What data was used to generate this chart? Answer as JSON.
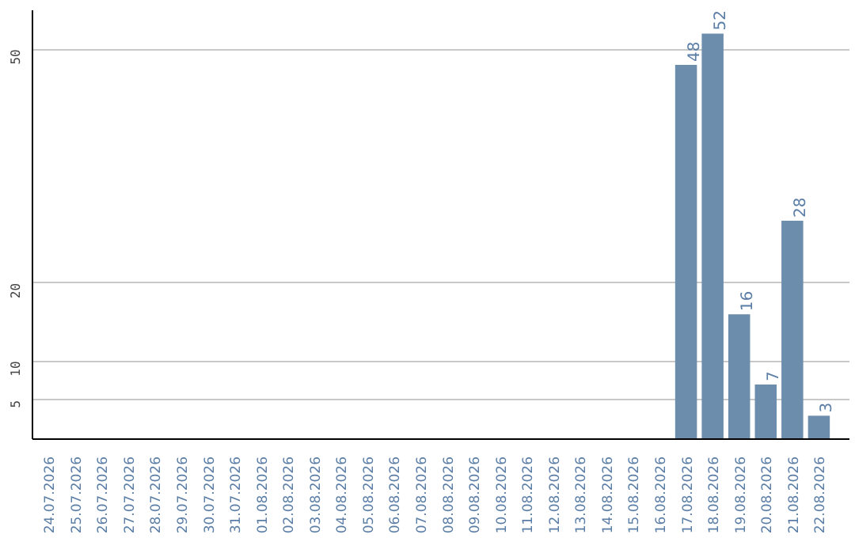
{
  "chart_data": {
    "type": "bar",
    "categories": [
      "24.07.2026",
      "25.07.2026",
      "26.07.2026",
      "27.07.2026",
      "28.07.2026",
      "29.07.2026",
      "30.07.2026",
      "31.07.2026",
      "01.08.2026",
      "02.08.2026",
      "03.08.2026",
      "04.08.2026",
      "05.08.2026",
      "06.08.2026",
      "07.08.2026",
      "08.08.2026",
      "09.08.2026",
      "10.08.2026",
      "11.08.2026",
      "12.08.2026",
      "13.08.2026",
      "14.08.2026",
      "15.08.2026",
      "16.08.2026",
      "17.08.2026",
      "18.08.2026",
      "19.08.2026",
      "20.08.2026",
      "21.08.2026",
      "22.08.2026"
    ],
    "values": [
      0,
      0,
      0,
      0,
      0,
      0,
      0,
      0,
      0,
      0,
      0,
      0,
      0,
      0,
      0,
      0,
      0,
      0,
      0,
      0,
      0,
      0,
      0,
      0,
      48,
      52,
      16,
      7,
      28,
      3
    ],
    "value_labels": [
      null,
      null,
      null,
      null,
      null,
      null,
      null,
      null,
      null,
      null,
      null,
      null,
      null,
      null,
      null,
      null,
      null,
      null,
      null,
      null,
      null,
      null,
      null,
      null,
      "48",
      "52",
      "16",
      "7",
      "28",
      "3"
    ],
    "color": "#6d8dad",
    "ylim": [
      0,
      55
    ],
    "yticks": [
      5,
      10,
      20,
      50
    ],
    "grid": "y"
  }
}
